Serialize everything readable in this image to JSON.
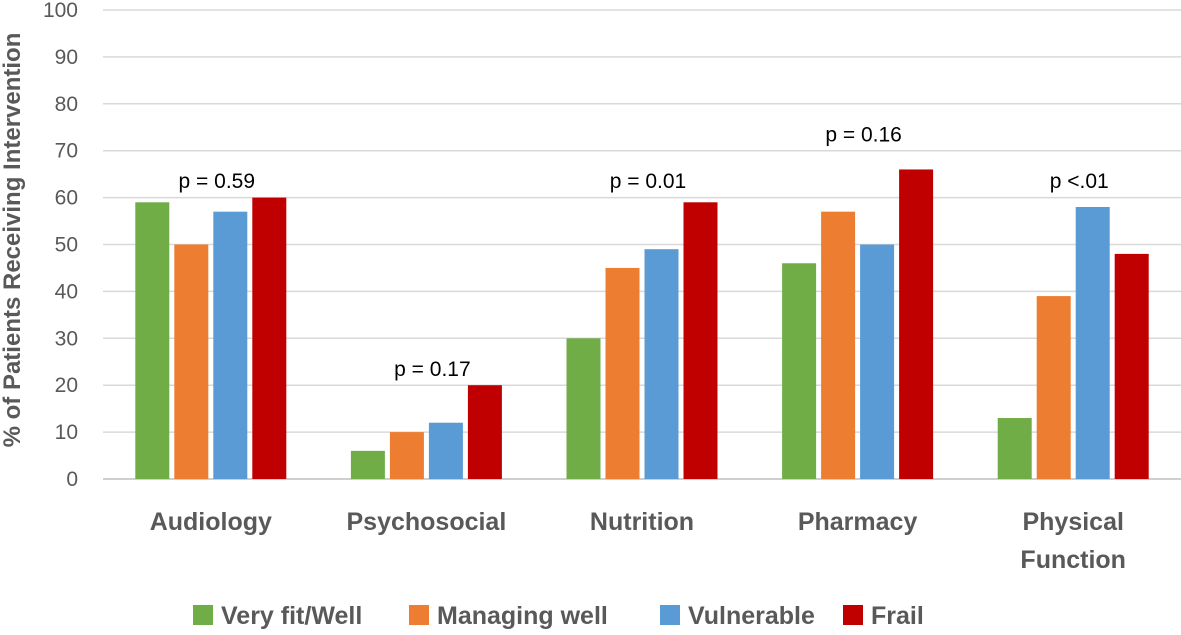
{
  "chart_data": {
    "type": "bar",
    "title": "",
    "xlabel": "",
    "ylabel": "% of Patients Receiving Intervention",
    "ylim": [
      0,
      100
    ],
    "yticks": [
      0,
      10,
      20,
      30,
      40,
      50,
      60,
      70,
      80,
      90,
      100
    ],
    "grid": true,
    "legend_position": "bottom",
    "categories": [
      [
        "Audiology"
      ],
      [
        "Psychosocial"
      ],
      [
        "Nutrition"
      ],
      [
        "Pharmacy"
      ],
      [
        "Physical",
        "Function"
      ]
    ],
    "series": [
      {
        "name": "Very fit/Well",
        "color": "#70AD47",
        "values": [
          59,
          6,
          30,
          46,
          13
        ]
      },
      {
        "name": "Managing well",
        "color": "#ED7D31",
        "values": [
          50,
          10,
          45,
          57,
          39
        ]
      },
      {
        "name": "Vulnerable",
        "color": "#5B9BD5",
        "values": [
          57,
          12,
          49,
          50,
          58
        ]
      },
      {
        "name": "Frail",
        "color": "#C00000",
        "values": [
          60,
          20,
          59,
          66,
          48
        ]
      }
    ],
    "annotations": [
      {
        "text": "p = 0.59",
        "category_index": 0,
        "value": 63.5
      },
      {
        "text": "p = 0.17",
        "category_index": 1,
        "value": 23.5
      },
      {
        "text": "p = 0.01",
        "category_index": 2,
        "value": 63.5
      },
      {
        "text": "p = 0.16",
        "category_index": 3,
        "value": 73.5
      },
      {
        "text": "p <.01",
        "category_index": 4,
        "value": 63.5
      }
    ]
  }
}
